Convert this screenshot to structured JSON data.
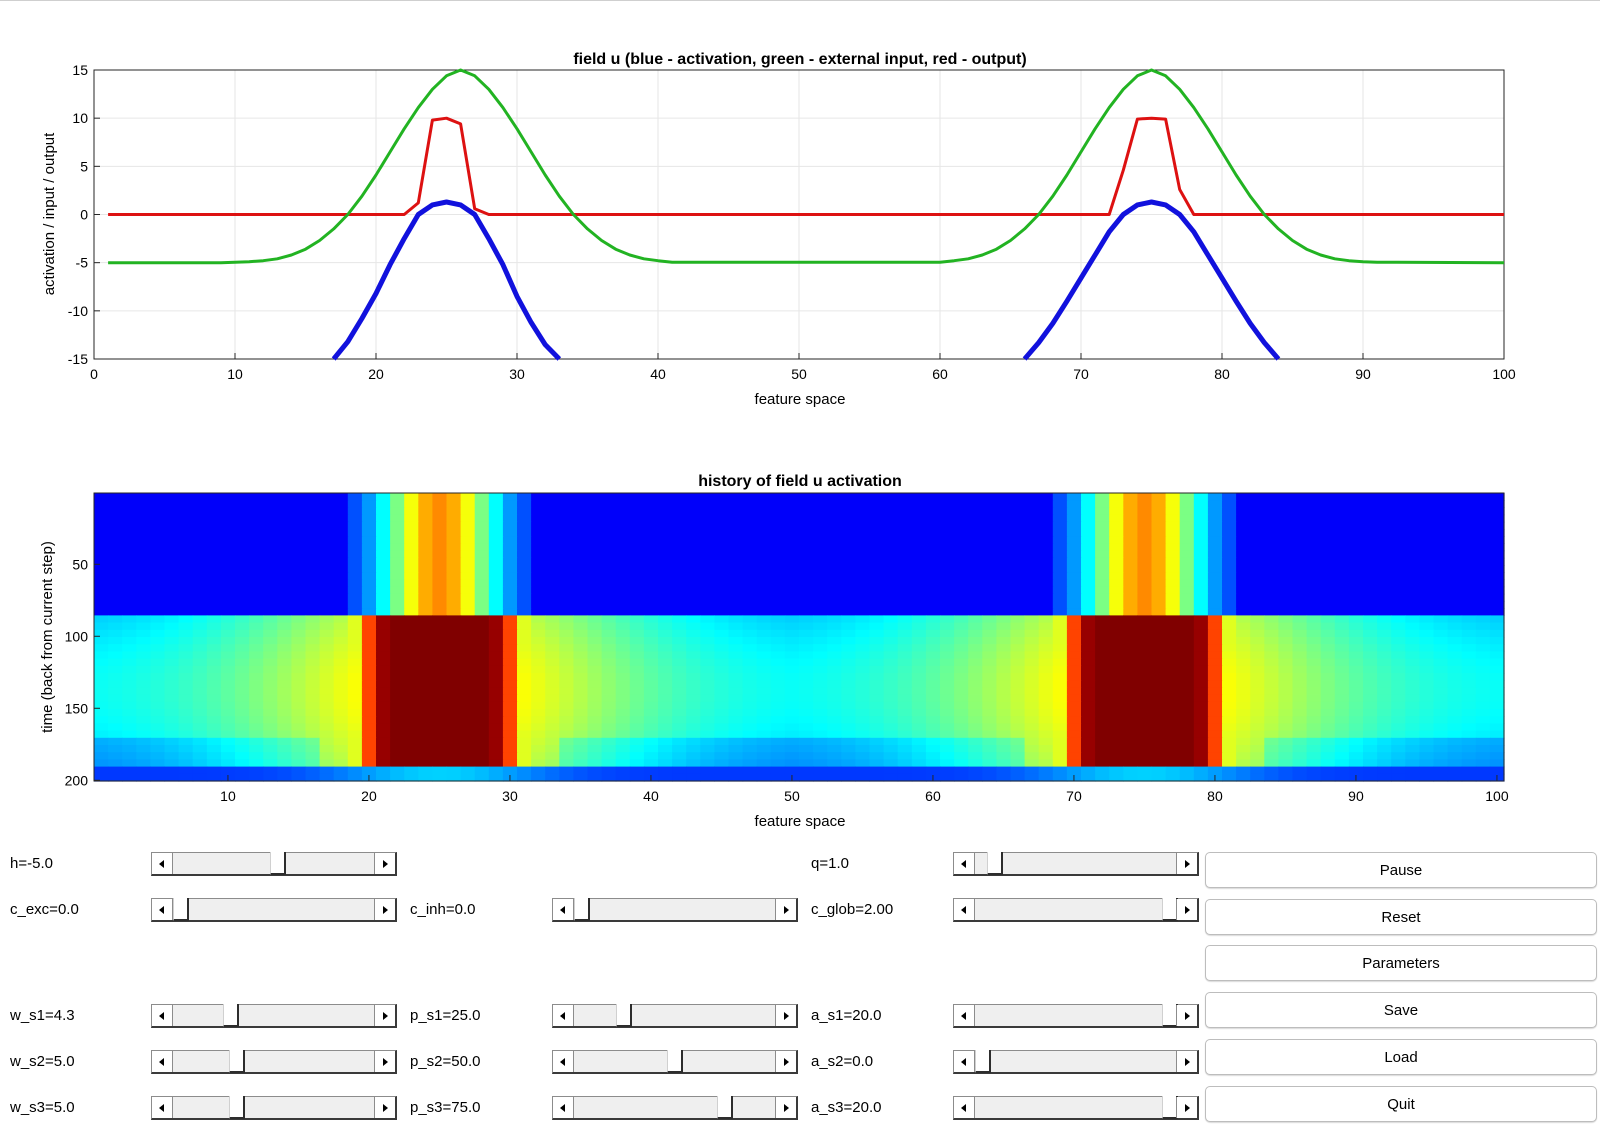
{
  "plots": {
    "field_plot": {
      "title": "field u (blue - activation, green - external input, red - output)",
      "xlabel": "feature space",
      "ylabel": "activation / input / output"
    },
    "history_plot": {
      "title": "history of field u activation",
      "xlabel": "feature space",
      "ylabel": "time (back from current step)"
    }
  },
  "chart_data": [
    {
      "type": "line",
      "title": "field u (blue - activation, green - external input, red - output)",
      "xlabel": "feature space",
      "ylabel": "activation / input / output",
      "xlim": [
        0,
        100
      ],
      "ylim": [
        -15,
        15
      ],
      "xticks": [
        0,
        10,
        20,
        30,
        40,
        50,
        60,
        70,
        80,
        90,
        100
      ],
      "yticks": [
        15,
        10,
        5,
        0,
        -5,
        -10,
        -15
      ],
      "grid": true,
      "series": [
        {
          "color": "#1111dd",
          "x": [
            17,
            18,
            19,
            20,
            21,
            22,
            23,
            24,
            25,
            26,
            27,
            28,
            29,
            30,
            31,
            32,
            33
          ],
          "y": [
            -15,
            -13.2,
            -10.8,
            -8.2,
            -5.2,
            -2.5,
            0,
            1.0,
            1.3,
            1.0,
            0,
            -2.5,
            -5.2,
            -8.5,
            -11.2,
            -13.5,
            -15
          ]
        },
        {
          "color": "#1111dd",
          "x": [
            66,
            67,
            68,
            69,
            70,
            71,
            72,
            73,
            74,
            75,
            76,
            77,
            78,
            79,
            80,
            81,
            82,
            83,
            84
          ],
          "y": [
            -15,
            -13.3,
            -11.3,
            -9.0,
            -6.6,
            -4.2,
            -1.8,
            0,
            1.0,
            1.3,
            1.0,
            0,
            -1.8,
            -4.2,
            -6.6,
            -9.0,
            -11.3,
            -13.3,
            -15
          ]
        },
        {
          "color": "#dd1111",
          "x": [
            1,
            22,
            23,
            24,
            25,
            26,
            27,
            28,
            72,
            73,
            74,
            75,
            76,
            77,
            78,
            100
          ],
          "y": [
            0,
            0,
            1.2,
            9.8,
            10,
            9.4,
            0.6,
            0,
            0,
            4.6,
            9.9,
            10,
            9.9,
            2.6,
            0,
            0
          ]
        },
        {
          "color": "#22b322",
          "x": [
            1,
            9,
            10,
            11,
            12,
            13,
            14,
            15,
            16,
            17,
            18,
            19,
            20,
            21,
            22,
            23,
            24,
            25,
            26,
            27,
            28,
            29,
            30,
            31,
            32,
            33,
            34,
            35,
            36,
            37,
            38,
            39,
            40,
            41,
            60,
            61,
            62,
            63,
            64,
            65,
            66,
            67,
            68,
            69,
            70,
            71,
            72,
            73,
            74,
            75,
            76,
            77,
            78,
            79,
            80,
            81,
            82,
            83,
            84,
            85,
            86,
            87,
            88,
            89,
            90,
            91,
            100
          ],
          "y": [
            -5,
            -5,
            -4.95,
            -4.9,
            -4.8,
            -4.6,
            -4.2,
            -3.6,
            -2.7,
            -1.5,
            0,
            1.9,
            4.1,
            6.5,
            8.9,
            11.1,
            13,
            14.4,
            15,
            14.4,
            13,
            11.1,
            8.9,
            6.5,
            4.1,
            1.9,
            0,
            -1.5,
            -2.7,
            -3.6,
            -4.2,
            -4.6,
            -4.8,
            -4.95,
            -4.95,
            -4.8,
            -4.6,
            -4.2,
            -3.6,
            -2.7,
            -1.5,
            0,
            1.9,
            4.1,
            6.5,
            8.9,
            11.1,
            13,
            14.4,
            15,
            14.4,
            13,
            11.1,
            8.9,
            6.5,
            4.1,
            1.9,
            0,
            -1.5,
            -2.7,
            -3.6,
            -4.2,
            -4.6,
            -4.8,
            -4.9,
            -4.95,
            -5
          ]
        }
      ]
    },
    {
      "type": "heatmap",
      "title": "history of field u activation",
      "xlabel": "feature space",
      "ylabel": "time (back from current step)",
      "xlim": [
        0.5,
        100.5
      ],
      "ylim": [
        0.5,
        200.5
      ],
      "xticks": [
        10,
        20,
        30,
        40,
        50,
        60,
        70,
        80,
        90,
        100
      ],
      "yticks": [
        50,
        100,
        150,
        200
      ],
      "colormap": "jet",
      "bumps": [
        25,
        75
      ],
      "active_rows": [
        90,
        185
      ]
    }
  ],
  "controls": {
    "rows": [
      [
        {
          "label": "h=-5.0",
          "value": 0.52
        },
        null,
        {
          "label": "q=1.0",
          "value": 0.1
        }
      ],
      [
        {
          "label": "c_exc=0.0",
          "value": 0.04
        },
        {
          "label": "c_inh=0.0",
          "value": 0.04
        },
        {
          "label": "c_glob=2.00",
          "value": 0.97
        }
      ],
      [
        {
          "label": "w_s1=4.3",
          "value": 0.29
        },
        {
          "label": "p_s1=25.0",
          "value": 0.25
        },
        {
          "label": "a_s1=20.0",
          "value": 0.97
        }
      ],
      [
        {
          "label": "w_s2=5.0",
          "value": 0.32
        },
        {
          "label": "p_s2=50.0",
          "value": 0.5
        },
        {
          "label": "a_s2=0.0",
          "value": 0.04
        }
      ],
      [
        {
          "label": "w_s3=5.0",
          "value": 0.32
        },
        {
          "label": "p_s3=75.0",
          "value": 0.75
        },
        {
          "label": "a_s3=20.0",
          "value": 0.97
        }
      ]
    ],
    "buttons": [
      "Pause",
      "Reset",
      "Parameters",
      "Save",
      "Load",
      "Quit"
    ]
  }
}
